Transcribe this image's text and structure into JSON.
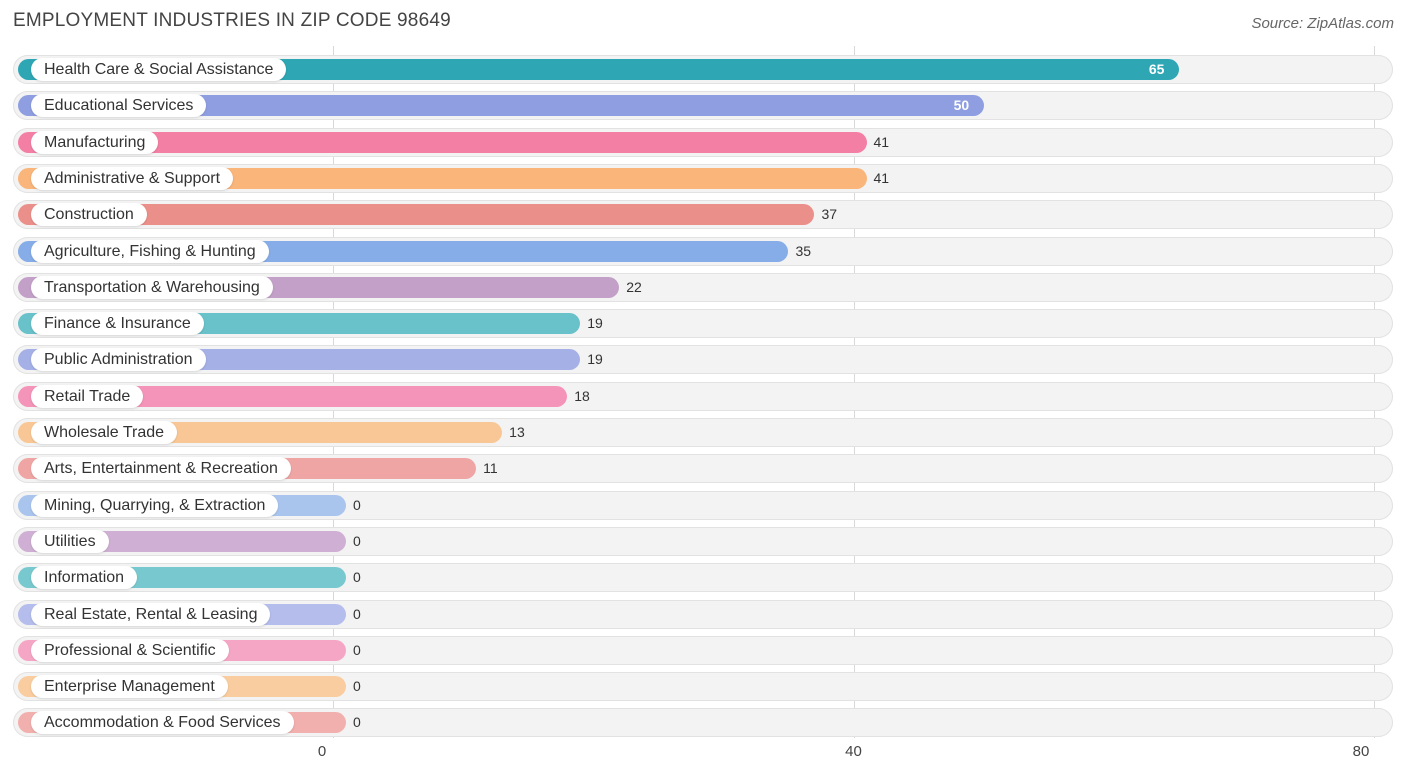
{
  "title": "EMPLOYMENT INDUSTRIES IN ZIP CODE 98649",
  "source": "Source: ZipAtlas.com",
  "chart_data": {
    "type": "bar",
    "orientation": "horizontal",
    "title": "EMPLOYMENT INDUSTRIES IN ZIP CODE 98649",
    "xlim": [
      0,
      80
    ],
    "xticks": [
      "0",
      "40",
      "80"
    ],
    "categories": [
      "Health Care & Social Assistance",
      "Educational Services",
      "Manufacturing",
      "Administrative & Support",
      "Construction",
      "Agriculture, Fishing & Hunting",
      "Transportation & Warehousing",
      "Finance & Insurance",
      "Public Administration",
      "Retail Trade",
      "Wholesale Trade",
      "Arts, Entertainment & Recreation",
      "Mining, Quarrying, & Extraction",
      "Utilities",
      "Information",
      "Real Estate, Rental & Leasing",
      "Professional & Scientific",
      "Enterprise Management",
      "Accommodation & Food Services"
    ],
    "values": [
      65,
      50,
      41,
      41,
      37,
      35,
      22,
      19,
      19,
      18,
      13,
      11,
      0,
      0,
      0,
      0,
      0,
      0,
      0
    ],
    "colors": [
      "#2ea6b4",
      "#8e9ee0",
      "#f47fa5",
      "#f9b57a",
      "#eb8f8a",
      "#86ade8",
      "#c3a0c8",
      "#69c1c9",
      "#a5b0e6",
      "#f494b8",
      "#f9c795",
      "#efa5a3",
      "#a9c5ee",
      "#cfafd3",
      "#78c9cf",
      "#b4bdec",
      "#f6a6c5",
      "#f9cd9f",
      "#f1b0ad"
    ],
    "grid": true
  }
}
